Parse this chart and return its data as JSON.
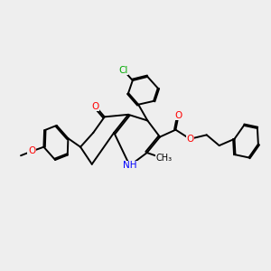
{
  "bg_color": "#eeeeee",
  "bond_color": "#000000",
  "bond_lw": 1.4,
  "atom_colors": {
    "O": "#ff0000",
    "N": "#0000ff",
    "Cl": "#00aa00"
  },
  "font_size": 7.5
}
